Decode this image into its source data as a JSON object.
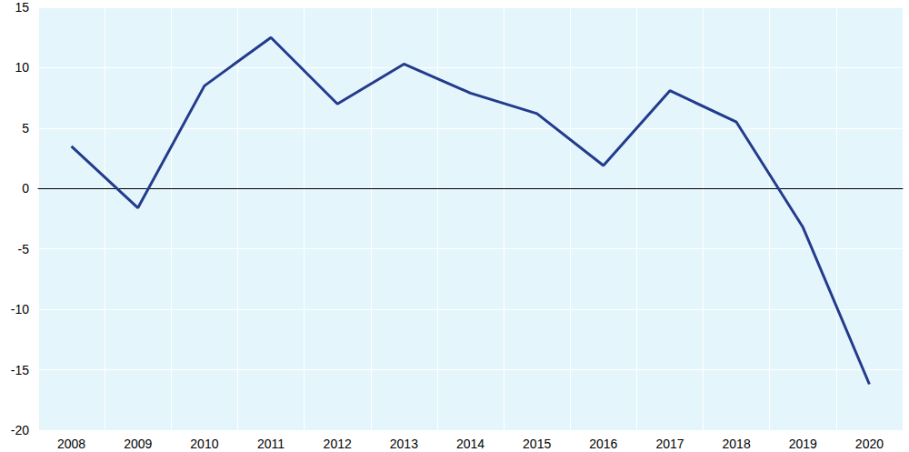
{
  "chart_data": {
    "type": "line",
    "categories": [
      "2008",
      "2009",
      "2010",
      "2011",
      "2012",
      "2013",
      "2014",
      "2015",
      "2016",
      "2017",
      "2018",
      "2019",
      "2020"
    ],
    "values": [
      3.5,
      -1.6,
      8.5,
      12.5,
      7.0,
      10.3,
      7.9,
      6.2,
      1.9,
      8.1,
      5.5,
      -3.2,
      -16.2
    ],
    "color": "#233b8c",
    "ylim": [
      -20,
      15
    ],
    "yticks": [
      -20,
      -15,
      -10,
      -5,
      0,
      5,
      10,
      15
    ],
    "grid": true
  }
}
